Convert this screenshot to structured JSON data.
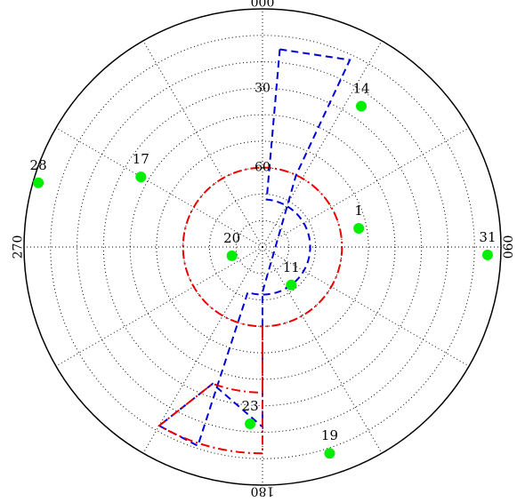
{
  "chart_data": {
    "type": "polar",
    "projection": "azimuth-elevation sky plot (elevation 90 at center, 0 at rim)",
    "radial_axis": {
      "range": [
        90,
        0
      ],
      "tick_labels": [
        "30",
        "60"
      ],
      "tick_values": [
        30,
        60
      ]
    },
    "angular_axis": {
      "direction": "clockwise",
      "zero_location": "top",
      "tick_labels": [
        "000",
        "090",
        "180",
        "270"
      ],
      "tick_values": [
        0,
        90,
        180,
        270
      ],
      "gridline_step_deg": 30
    },
    "grid": true,
    "colors": {
      "satellite": "#00ee00",
      "mask_blue": "#0000dd",
      "mask_red": "#ee0000",
      "grid": "#000000",
      "outline": "#000000"
    },
    "satellites": [
      {
        "prn": "14",
        "azimuth": 35,
        "elevation": 25
      },
      {
        "prn": "17",
        "azimuth": 300,
        "elevation": 37
      },
      {
        "prn": "1",
        "azimuth": 79,
        "elevation": 53
      },
      {
        "prn": "31",
        "azimuth": 92,
        "elevation": 5
      },
      {
        "prn": "20",
        "azimuth": 254,
        "elevation": 78
      },
      {
        "prn": "11",
        "azimuth": 143,
        "elevation": 72
      },
      {
        "prn": "28",
        "azimuth": 286,
        "elevation": 2
      },
      {
        "prn": "23",
        "azimuth": 184,
        "elevation": 23
      },
      {
        "prn": "19",
        "azimuth": 162,
        "elevation": 8
      }
    ],
    "mask_series": [
      {
        "style": "blue dashed",
        "points": [
          {
            "azimuth": 5,
            "elevation": 15
          },
          {
            "azimuth": 25,
            "elevation": 12
          },
          {
            "azimuth": 25,
            "elevation": 60
          },
          {
            "azimuth": 180,
            "elevation": 73
          },
          {
            "azimuth": 180,
            "elevation": 22
          },
          {
            "azimuth": 200,
            "elevation": 35
          },
          {
            "azimuth": 210,
            "elevation": 12
          },
          {
            "azimuth": 198,
            "elevation": 11
          },
          {
            "azimuth": 198,
            "elevation": 72
          },
          {
            "azimuth": 5,
            "elevation": 72
          },
          {
            "azimuth": 5,
            "elevation": 15
          }
        ],
        "closed": false
      },
      {
        "style": "red dashed",
        "points": [
          {
            "azimuth": 0,
            "elevation": 60
          },
          {
            "azimuth": 180,
            "elevation": 60
          },
          {
            "azimuth": 180,
            "elevation": 35
          },
          {
            "azimuth": 200,
            "elevation": 35
          },
          {
            "azimuth": 210,
            "elevation": 12
          },
          {
            "azimuth": 180,
            "elevation": 12
          },
          {
            "azimuth": 180,
            "elevation": 60
          },
          {
            "azimuth": 360,
            "elevation": 60
          }
        ],
        "closed": false
      }
    ]
  }
}
